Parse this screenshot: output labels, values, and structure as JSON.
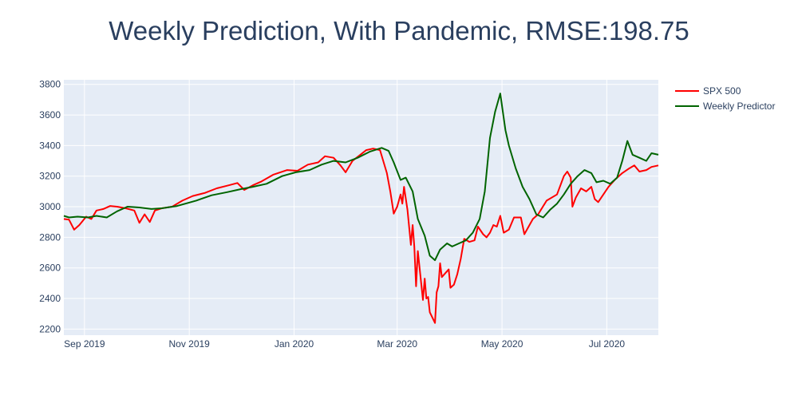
{
  "chart_data": {
    "type": "line",
    "title": "Weekly Prediction, With Pandemic, RMSE:198.75",
    "xlabel": "",
    "ylabel": "",
    "xlim": [
      "2019-08-20",
      "2020-07-31"
    ],
    "ylim": [
      2160,
      3830
    ],
    "grid": true,
    "legend": "right",
    "x_ticks": [
      {
        "date": "2019-09-01",
        "label": "Sep 2019"
      },
      {
        "date": "2019-11-01",
        "label": "Nov 2019"
      },
      {
        "date": "2020-01-01",
        "label": "Jan 2020"
      },
      {
        "date": "2020-03-01",
        "label": "Mar 2020"
      },
      {
        "date": "2020-05-01",
        "label": "May 2020"
      },
      {
        "date": "2020-07-01",
        "label": "Jul 2020"
      }
    ],
    "y_ticks": [
      2200,
      2400,
      2600,
      2800,
      3000,
      3200,
      3400,
      3600,
      3800
    ],
    "series": [
      {
        "name": "SPX 500",
        "color": "#ff0000",
        "points": [
          [
            "2019-08-20",
            2920
          ],
          [
            "2019-08-23",
            2915
          ],
          [
            "2019-08-26",
            2850
          ],
          [
            "2019-08-29",
            2880
          ],
          [
            "2019-09-02",
            2935
          ],
          [
            "2019-09-05",
            2920
          ],
          [
            "2019-09-08",
            2975
          ],
          [
            "2019-09-12",
            2985
          ],
          [
            "2019-09-16",
            3005
          ],
          [
            "2019-09-20",
            3000
          ],
          [
            "2019-09-25",
            2990
          ],
          [
            "2019-09-30",
            2975
          ],
          [
            "2019-10-03",
            2895
          ],
          [
            "2019-10-06",
            2950
          ],
          [
            "2019-10-09",
            2900
          ],
          [
            "2019-10-12",
            2975
          ],
          [
            "2019-10-16",
            2990
          ],
          [
            "2019-10-22",
            3000
          ],
          [
            "2019-10-28",
            3040
          ],
          [
            "2019-11-03",
            3070
          ],
          [
            "2019-11-10",
            3090
          ],
          [
            "2019-11-17",
            3120
          ],
          [
            "2019-11-24",
            3140
          ],
          [
            "2019-11-29",
            3155
          ],
          [
            "2019-12-03",
            3110
          ],
          [
            "2019-12-08",
            3140
          ],
          [
            "2019-12-13",
            3165
          ],
          [
            "2019-12-20",
            3210
          ],
          [
            "2019-12-28",
            3240
          ],
          [
            "2020-01-03",
            3235
          ],
          [
            "2020-01-09",
            3275
          ],
          [
            "2020-01-15",
            3290
          ],
          [
            "2020-01-19",
            3330
          ],
          [
            "2020-01-24",
            3320
          ],
          [
            "2020-01-28",
            3270
          ],
          [
            "2020-01-31",
            3225
          ],
          [
            "2020-02-04",
            3300
          ],
          [
            "2020-02-08",
            3335
          ],
          [
            "2020-02-12",
            3370
          ],
          [
            "2020-02-16",
            3380
          ],
          [
            "2020-02-20",
            3370
          ],
          [
            "2020-02-24",
            3220
          ],
          [
            "2020-02-26",
            3100
          ],
          [
            "2020-02-28",
            2955
          ],
          [
            "2020-03-01",
            3000
          ],
          [
            "2020-03-03",
            3080
          ],
          [
            "2020-03-04",
            3020
          ],
          [
            "2020-03-05",
            3130
          ],
          [
            "2020-03-07",
            2980
          ],
          [
            "2020-03-09",
            2750
          ],
          [
            "2020-03-10",
            2880
          ],
          [
            "2020-03-11",
            2740
          ],
          [
            "2020-03-12",
            2480
          ],
          [
            "2020-03-13",
            2710
          ],
          [
            "2020-03-16",
            2390
          ],
          [
            "2020-03-17",
            2530
          ],
          [
            "2020-03-18",
            2400
          ],
          [
            "2020-03-19",
            2410
          ],
          [
            "2020-03-20",
            2310
          ],
          [
            "2020-03-23",
            2240
          ],
          [
            "2020-03-24",
            2440
          ],
          [
            "2020-03-25",
            2480
          ],
          [
            "2020-03-26",
            2630
          ],
          [
            "2020-03-27",
            2540
          ],
          [
            "2020-03-31",
            2590
          ],
          [
            "2020-04-01",
            2470
          ],
          [
            "2020-04-03",
            2490
          ],
          [
            "2020-04-05",
            2560
          ],
          [
            "2020-04-07",
            2660
          ],
          [
            "2020-04-09",
            2790
          ],
          [
            "2020-04-12",
            2770
          ],
          [
            "2020-04-15",
            2780
          ],
          [
            "2020-04-17",
            2870
          ],
          [
            "2020-04-20",
            2820
          ],
          [
            "2020-04-22",
            2800
          ],
          [
            "2020-04-24",
            2830
          ],
          [
            "2020-04-26",
            2880
          ],
          [
            "2020-04-28",
            2870
          ],
          [
            "2020-04-30",
            2940
          ],
          [
            "2020-05-02",
            2830
          ],
          [
            "2020-05-05",
            2850
          ],
          [
            "2020-05-08",
            2930
          ],
          [
            "2020-05-12",
            2930
          ],
          [
            "2020-05-14",
            2820
          ],
          [
            "2020-05-19",
            2920
          ],
          [
            "2020-05-22",
            2950
          ],
          [
            "2020-05-27",
            3040
          ],
          [
            "2020-06-02",
            3080
          ],
          [
            "2020-06-06",
            3200
          ],
          [
            "2020-06-08",
            3230
          ],
          [
            "2020-06-10",
            3190
          ],
          [
            "2020-06-11",
            3000
          ],
          [
            "2020-06-13",
            3060
          ],
          [
            "2020-06-16",
            3120
          ],
          [
            "2020-06-19",
            3100
          ],
          [
            "2020-06-22",
            3130
          ],
          [
            "2020-06-24",
            3050
          ],
          [
            "2020-06-26",
            3030
          ],
          [
            "2020-06-29",
            3080
          ],
          [
            "2020-07-02",
            3130
          ],
          [
            "2020-07-06",
            3180
          ],
          [
            "2020-07-10",
            3220
          ],
          [
            "2020-07-14",
            3250
          ],
          [
            "2020-07-17",
            3270
          ],
          [
            "2020-07-20",
            3230
          ],
          [
            "2020-07-24",
            3240
          ],
          [
            "2020-07-27",
            3260
          ],
          [
            "2020-07-31",
            3270
          ]
        ]
      },
      {
        "name": "Weekly Predictor",
        "color": "#006400",
        "points": [
          [
            "2019-08-20",
            2940
          ],
          [
            "2019-08-23",
            2930
          ],
          [
            "2019-08-28",
            2935
          ],
          [
            "2019-09-03",
            2930
          ],
          [
            "2019-09-08",
            2940
          ],
          [
            "2019-09-14",
            2930
          ],
          [
            "2019-09-20",
            2970
          ],
          [
            "2019-09-26",
            3000
          ],
          [
            "2019-10-03",
            2995
          ],
          [
            "2019-10-10",
            2985
          ],
          [
            "2019-10-16",
            2990
          ],
          [
            "2019-10-25",
            3005
          ],
          [
            "2019-11-05",
            3040
          ],
          [
            "2019-11-14",
            3075
          ],
          [
            "2019-11-23",
            3095
          ],
          [
            "2019-12-01",
            3115
          ],
          [
            "2019-12-08",
            3130
          ],
          [
            "2019-12-16",
            3150
          ],
          [
            "2019-12-25",
            3200
          ],
          [
            "2020-01-02",
            3225
          ],
          [
            "2020-01-10",
            3240
          ],
          [
            "2020-01-17",
            3275
          ],
          [
            "2020-01-24",
            3300
          ],
          [
            "2020-01-31",
            3290
          ],
          [
            "2020-02-07",
            3320
          ],
          [
            "2020-02-14",
            3360
          ],
          [
            "2020-02-21",
            3385
          ],
          [
            "2020-02-25",
            3365
          ],
          [
            "2020-02-28",
            3290
          ],
          [
            "2020-03-03",
            3175
          ],
          [
            "2020-03-06",
            3190
          ],
          [
            "2020-03-10",
            3100
          ],
          [
            "2020-03-13",
            2920
          ],
          [
            "2020-03-17",
            2810
          ],
          [
            "2020-03-20",
            2680
          ],
          [
            "2020-03-23",
            2650
          ],
          [
            "2020-03-26",
            2720
          ],
          [
            "2020-03-30",
            2760
          ],
          [
            "2020-04-02",
            2740
          ],
          [
            "2020-04-06",
            2760
          ],
          [
            "2020-04-10",
            2780
          ],
          [
            "2020-04-14",
            2830
          ],
          [
            "2020-04-18",
            2920
          ],
          [
            "2020-04-21",
            3100
          ],
          [
            "2020-04-24",
            3450
          ],
          [
            "2020-04-27",
            3620
          ],
          [
            "2020-04-30",
            3740
          ],
          [
            "2020-05-03",
            3500
          ],
          [
            "2020-05-05",
            3400
          ],
          [
            "2020-05-09",
            3250
          ],
          [
            "2020-05-13",
            3130
          ],
          [
            "2020-05-17",
            3050
          ],
          [
            "2020-05-21",
            2950
          ],
          [
            "2020-05-25",
            2930
          ],
          [
            "2020-05-29",
            2980
          ],
          [
            "2020-06-02",
            3020
          ],
          [
            "2020-06-06",
            3080
          ],
          [
            "2020-06-10",
            3150
          ],
          [
            "2020-06-14",
            3200
          ],
          [
            "2020-06-18",
            3240
          ],
          [
            "2020-06-22",
            3220
          ],
          [
            "2020-06-25",
            3160
          ],
          [
            "2020-06-29",
            3170
          ],
          [
            "2020-07-03",
            3150
          ],
          [
            "2020-07-07",
            3190
          ],
          [
            "2020-07-10",
            3300
          ],
          [
            "2020-07-13",
            3430
          ],
          [
            "2020-07-16",
            3340
          ],
          [
            "2020-07-20",
            3320
          ],
          [
            "2020-07-24",
            3300
          ],
          [
            "2020-07-27",
            3350
          ],
          [
            "2020-07-31",
            3340
          ]
        ]
      }
    ]
  }
}
